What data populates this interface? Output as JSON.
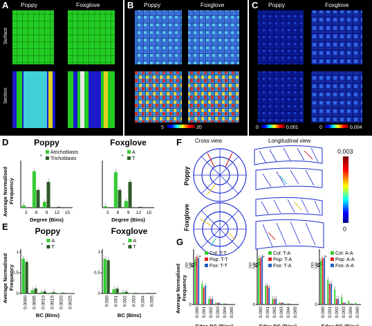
{
  "panels": {
    "A": {
      "letter": "A",
      "col_labels": [
        "Poppy",
        "Foxglove"
      ],
      "row_labels": [
        "Surface",
        "Section"
      ]
    },
    "B": {
      "letter": "B",
      "col_labels": [
        "Poppy",
        "Foxglove"
      ],
      "colorbar": {
        "min": "5",
        "max": "20"
      }
    },
    "C": {
      "letter": "C",
      "col_labels": [
        "Poppy",
        "Foxglove"
      ],
      "colorbar_left": {
        "min": "0",
        "max": "0.001"
      },
      "colorbar_right": {
        "min": "0",
        "max": "0.004"
      }
    },
    "F": {
      "letter": "F",
      "cross_view": "Cross view",
      "longitudinal_view": "Longitudinal view",
      "row_labels": [
        "Poppy",
        "Foxglove"
      ],
      "colorbar": {
        "max": "0.003",
        "min": "0"
      }
    }
  },
  "figure": {
    "D": {
      "letter": "D",
      "ylabel": "Average Normalised\nFrequency",
      "star": "*"
    },
    "E": {
      "letter": "E",
      "ylabel": "Average Normalised\nFrequency",
      "star": "*"
    },
    "G": {
      "letter": "G",
      "ylabel": "Average Normalised\nFrequency",
      "star": "*"
    }
  },
  "chart_data": [
    {
      "id": "D-poppy",
      "type": "bar",
      "title": "Poppy",
      "xlabel": "Degree (Bins)",
      "categories": [
        "3",
        "6",
        "9",
        "12",
        "15"
      ],
      "ylim": [
        0,
        1
      ],
      "series": [
        {
          "name": "Atrichoblasts",
          "color": "#33cc33",
          "values": [
            0.05,
            0.82,
            0.13,
            0.0,
            0.0
          ]
        },
        {
          "name": "Trichoblasts",
          "color": "#2d5a27",
          "values": [
            0.0,
            0.4,
            0.58,
            0.02,
            0.0
          ]
        }
      ]
    },
    {
      "id": "D-foxglove",
      "type": "bar",
      "title": "Foxglove",
      "xlabel": "Degree (Bins)",
      "categories": [
        "3",
        "6",
        "9",
        "12",
        "15"
      ],
      "ylim": [
        0,
        1
      ],
      "series": [
        {
          "name": "A",
          "color": "#33cc33",
          "values": [
            0.03,
            0.8,
            0.15,
            0.0,
            0.0
          ]
        },
        {
          "name": "T",
          "color": "#2d5a27",
          "values": [
            0.0,
            0.4,
            0.58,
            0.02,
            0.0
          ]
        }
      ]
    },
    {
      "id": "E-poppy",
      "type": "bar",
      "title": "Poppy",
      "xlabel": "BC (Bins)",
      "categories": [
        "0.0000",
        "0.0005",
        "0.0010",
        "0.0015",
        "0.0020",
        "0.0025"
      ],
      "ylim": [
        0,
        1
      ],
      "series": [
        {
          "name": "A",
          "color": "#33cc33",
          "values": [
            0.84,
            0.08,
            0.03,
            0.02,
            0.01,
            0.005
          ]
        },
        {
          "name": "T",
          "color": "#2d5a27",
          "values": [
            0.76,
            0.12,
            0.05,
            0.03,
            0.02,
            0.01
          ]
        }
      ]
    },
    {
      "id": "E-foxglove",
      "type": "bar",
      "title": "Foxglove",
      "xlabel": "BC (Bins)",
      "categories": [
        "0.000",
        "0.001",
        "0.002",
        "0.003",
        "0.004",
        "0.005"
      ],
      "ylim": [
        0,
        1
      ],
      "series": [
        {
          "name": "A",
          "color": "#33cc33",
          "values": [
            0.83,
            0.1,
            0.03,
            0.01,
            0.005,
            0.0
          ]
        },
        {
          "name": "T",
          "color": "#2d5a27",
          "values": [
            0.8,
            0.12,
            0.04,
            0.015,
            0.005,
            0.0
          ]
        }
      ]
    },
    {
      "id": "G-TT",
      "type": "bar",
      "xlabel": "Edge BC (Bins)",
      "categories": [
        "0.000",
        "0.001",
        "0.002",
        "0.003",
        "0.004",
        "0.005"
      ],
      "ylim": [
        0,
        0.9
      ],
      "ybreak": [
        0.2,
        0.8
      ],
      "series": [
        {
          "name": "Col: T-T",
          "color": "#33cc33",
          "values": [
            0.84,
            0.11,
            0.03,
            0.01,
            0.005,
            0.0
          ]
        },
        {
          "name": "Pop: T-T",
          "color": "#dd2020",
          "values": [
            0.86,
            0.09,
            0.03,
            0.01,
            0.005,
            0.0
          ]
        },
        {
          "name": "Fox: T-T",
          "color": "#2060c0",
          "values": [
            0.85,
            0.1,
            0.03,
            0.01,
            0.005,
            0.0
          ]
        }
      ]
    },
    {
      "id": "G-TA",
      "type": "bar",
      "xlabel": "Edge BC (Bins)",
      "categories": [
        "0.000",
        "0.001",
        "0.002",
        "0.003",
        "0.004",
        "0.005"
      ],
      "ylim": [
        0,
        0.9
      ],
      "ybreak": [
        0.2,
        0.8
      ],
      "series": [
        {
          "name": "Col: T-A",
          "color": "#33cc33",
          "values": [
            0.85,
            0.1,
            0.03,
            0.01,
            0.005,
            0.0
          ]
        },
        {
          "name": "Pop: T-A",
          "color": "#dd2020",
          "values": [
            0.85,
            0.1,
            0.03,
            0.01,
            0.005,
            0.0
          ]
        },
        {
          "name": "Fox: T-A",
          "color": "#2060c0",
          "values": [
            0.86,
            0.09,
            0.03,
            0.01,
            0.005,
            0.0
          ]
        }
      ]
    },
    {
      "id": "G-AA",
      "type": "bar",
      "xlabel": "Edge BC (Bins)",
      "categories": [
        "0.000",
        "0.001",
        "0.002",
        "0.003",
        "0.004",
        "0.005"
      ],
      "ylim": [
        0,
        0.9
      ],
      "ybreak": [
        0.2,
        0.8
      ],
      "series": [
        {
          "name": "Col: A-A",
          "color": "#33cc33",
          "values": [
            0.83,
            0.13,
            0.08,
            0.04,
            0.02,
            0.01
          ]
        },
        {
          "name": "Pop: A-A",
          "color": "#dd2020",
          "values": [
            0.85,
            0.11,
            0.03,
            0.01,
            0.005,
            0.0
          ]
        },
        {
          "name": "Fox: A-A",
          "color": "#2060c0",
          "values": [
            0.85,
            0.11,
            0.03,
            0.01,
            0.005,
            0.0
          ]
        }
      ]
    }
  ]
}
